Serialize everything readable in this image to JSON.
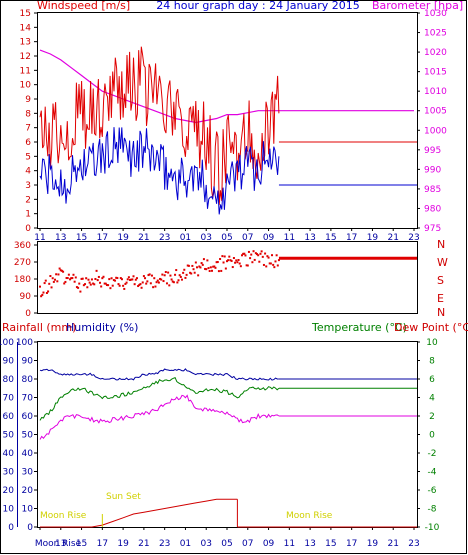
{
  "header": {
    "left_title": "Windspeed [m/s]",
    "center_title": "24 hour graph day : 24 January 2015",
    "right_title": "Barometer [hpa]"
  },
  "compass": [
    "N",
    "W",
    "S",
    "E",
    "N"
  ],
  "bottom_titles": {
    "rainfall": "Rainfall (mm)",
    "humidity": "Humidity (%)",
    "temperature": "Temperature (°C)",
    "dewpoint": "Dew Point (°C)"
  },
  "annotations": {
    "moon_rise_left": "Moon Rise",
    "sun_set": "Sun Set",
    "moon_rise_right": "Moon Rise",
    "moon_rise_axis": "Moon Rise"
  },
  "colors": {
    "wind_speed": "#e00000",
    "wind_gust": "#0000d0",
    "barometer": "#e000e0",
    "wind_direction": "#e00000",
    "rainfall": "#d00000",
    "humidity": "#e000e0",
    "temperature": "#0000a0",
    "dewpoint": "#008000",
    "annotation": "#d0d000"
  },
  "chart_data": [
    {
      "type": "line",
      "title": "24 hour graph day : 24 January 2015",
      "x_tick_labels": [
        "11",
        "13",
        "15",
        "17",
        "19",
        "21",
        "23",
        "01",
        "03",
        "05",
        "07",
        "09",
        "11",
        "13",
        "15",
        "17",
        "19",
        "21",
        "23"
      ],
      "ylabel_left": "Windspeed [m/s]",
      "ylabel_right": "Barometer [hpa]",
      "ylim_left": [
        0,
        15
      ],
      "ylim_right": [
        975,
        1030
      ],
      "y_ticks_left": [
        "0",
        "1",
        "2",
        "3",
        "4",
        "5",
        "6",
        "7",
        "8",
        "9",
        "10",
        "11",
        "12",
        "13",
        "14",
        "15"
      ],
      "y_ticks_right": [
        "975",
        "980",
        "985",
        "990",
        "995",
        "1000",
        "1005",
        "1010",
        "1015",
        "1020",
        "1025",
        "1030"
      ],
      "grid": false,
      "series": [
        {
          "axis": "right",
          "values_hourly": [
            1020.5,
            1019.5,
            1018,
            1016,
            1014,
            1012,
            1010,
            1009,
            1008,
            1007,
            1006,
            1005,
            1004,
            1003,
            1002.5,
            1002,
            1002.5,
            1003,
            1004,
            1004,
            1004.5,
            1005,
            1005,
            1005,
            1005,
            1005,
            1005,
            1005,
            1005,
            1005,
            1005,
            1005,
            1005,
            1005,
            1005,
            1005,
            1005
          ]
        },
        {
          "axis": "left",
          "values_hourly": [
            6,
            6.5,
            7,
            7,
            8.5,
            8,
            9,
            10,
            10,
            9.5,
            10,
            9,
            8,
            7.5,
            7,
            7,
            6,
            4,
            5,
            6,
            7,
            6,
            7.5,
            8,
            8,
            7.5,
            7,
            6,
            6,
            6,
            6,
            6,
            6,
            6,
            6,
            6,
            6
          ]
        },
        {
          "axis": "left",
          "values_hourly": [
            4,
            3.5,
            3,
            3.5,
            4.5,
            4.5,
            5,
            5.5,
            5.5,
            5,
            5.5,
            5,
            4,
            3.5,
            3.5,
            3.5,
            3,
            2,
            3,
            4,
            4.5,
            4,
            5,
            5,
            5.5,
            5,
            4.5,
            3,
            3,
            3,
            3,
            3,
            3,
            3,
            3,
            3,
            3
          ]
        }
      ]
    },
    {
      "type": "scatter",
      "ylabel": "Wind Direction",
      "y_ticks": [
        "0",
        "90",
        "180",
        "270",
        "360"
      ],
      "ylim": [
        0,
        360
      ],
      "values_hourly": [
        110,
        160,
        200,
        180,
        150,
        190,
        175,
        150,
        165,
        180,
        170,
        160,
        175,
        195,
        210,
        230,
        250,
        260,
        265,
        275,
        285,
        290,
        285,
        280,
        285,
        285,
        290,
        290,
        290,
        290,
        290,
        290,
        290,
        290,
        290,
        290,
        290
      ]
    },
    {
      "type": "line",
      "ylabel_left": "Rainfall (mm)",
      "ylabel_right": "Temperature (°C)",
      "y_ticks_left_rain": [
        "0",
        "10",
        "20",
        "30",
        "40",
        "50",
        "60",
        "70",
        "80",
        "90",
        "100"
      ],
      "y_ticks_left_humidity": [
        "0",
        "10",
        "20",
        "30",
        "40",
        "50",
        "60",
        "70",
        "80",
        "90",
        "100"
      ],
      "y_ticks_right": [
        "-10",
        "-8",
        "-6",
        "-4",
        "-2",
        "0",
        "2",
        "4",
        "6",
        "8",
        "10"
      ],
      "ylim_left": [
        0,
        100
      ],
      "ylim_right": [
        -10,
        10
      ],
      "x_tick_labels": [
        "Moon Rise",
        "13",
        "15",
        "17",
        "19",
        "21",
        "23",
        "01",
        "03",
        "05",
        "07",
        "09",
        "11",
        "13",
        "15",
        "17",
        "19",
        "21",
        "23"
      ],
      "series": [
        {
          "name": "Humidity (%)",
          "axis": "left",
          "values_hourly": [
            47,
            52,
            58,
            60,
            60,
            58,
            57,
            58,
            59,
            60,
            61,
            63,
            66,
            69,
            71,
            65,
            63,
            63,
            62,
            58,
            57,
            60,
            60,
            60,
            60,
            60,
            60,
            60,
            60,
            60,
            60,
            60,
            60,
            60,
            60,
            60,
            60
          ]
        },
        {
          "name": "Temperature (°C)",
          "axis": "right",
          "values_hourly": [
            7,
            7,
            6.5,
            6.5,
            6.5,
            6.5,
            6,
            6,
            6,
            6,
            6.5,
            6.5,
            7,
            7,
            7,
            6.5,
            6.5,
            6.5,
            6.5,
            6,
            6,
            6,
            6,
            6,
            6,
            6,
            6,
            6,
            6,
            6,
            6,
            6,
            6,
            6,
            6,
            6,
            6
          ]
        },
        {
          "name": "Dew Point (°C)",
          "axis": "right",
          "values_hourly": [
            1.5,
            2.5,
            4,
            4.8,
            5,
            4.5,
            4,
            4,
            4.3,
            4.5,
            5,
            5.5,
            6,
            6,
            5.2,
            4.5,
            4.8,
            4.8,
            4.6,
            4,
            5,
            5,
            5,
            5,
            5,
            5,
            5,
            5,
            5,
            5,
            5,
            5,
            5,
            5,
            5,
            5,
            5
          ]
        },
        {
          "name": "Rainfall (mm)",
          "axis": "left",
          "values_hourly": [
            0,
            0,
            0,
            0,
            0,
            0,
            1,
            3,
            5,
            7,
            8,
            9,
            10,
            11,
            12,
            13,
            14,
            15,
            15,
            15,
            0,
            0,
            0,
            0,
            0,
            0,
            0,
            0,
            0,
            0,
            0,
            0,
            0,
            0,
            0,
            0,
            0
          ]
        }
      ]
    }
  ]
}
